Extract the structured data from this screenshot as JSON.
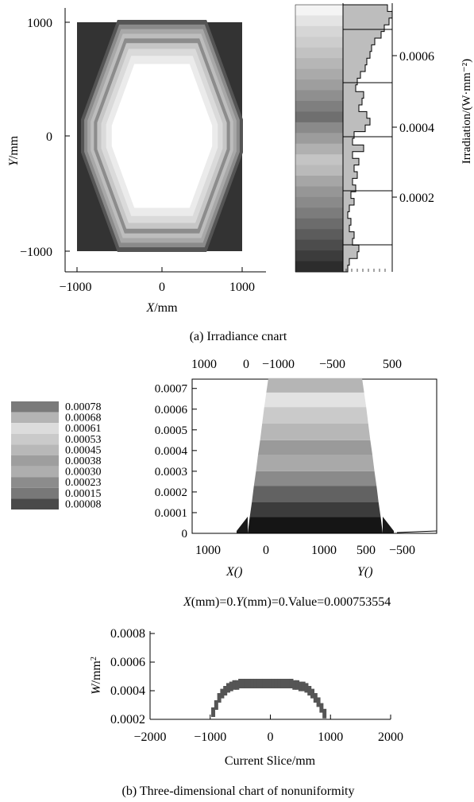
{
  "panel_a": {
    "caption": "(a) Irradiance cnart",
    "heatmap": {
      "ylabel_var": "Y",
      "ylabel_unit": "/mm",
      "xlabel_var": "X",
      "xlabel_unit": "/mm",
      "xticks": [
        "−1000",
        "0",
        "1000"
      ],
      "yticks": [
        "1000",
        "0",
        "−1000"
      ]
    },
    "colorbar": {
      "label": "Irradiation/(W·mm⁻²)",
      "ticks": [
        "0.0006",
        "0.0004",
        "0.0002"
      ]
    }
  },
  "panel_b": {
    "caption": "(b) Three-dimensional chart of nonuniformity",
    "legend": [
      "0.00078",
      "0.00068",
      "0.00061",
      "0.00053",
      "0.00045",
      "0.00038",
      "0.00030",
      "0.00023",
      "0.00015",
      "0.00008"
    ],
    "legend_colors": [
      "#7a7a7a",
      "#b4b4b4",
      "#dcdcdc",
      "#cacaca",
      "#b8b8b8",
      "#9e9e9e",
      "#aeaeae",
      "#8c8c8c",
      "#787878",
      "#4a4a4a"
    ],
    "view3d": {
      "top_ticks": [
        "1000",
        "0",
        "−1000",
        "−500",
        "500"
      ],
      "bottom_ticks": [
        "1000",
        "0",
        "1000",
        "500",
        "−500"
      ],
      "zticks": [
        "0.0007",
        "0.0006",
        "0.0005",
        "0.0004",
        "0.0003",
        "0.0002",
        "0.0001",
        "0"
      ],
      "xaxis": "X()",
      "yaxis": "Y()"
    },
    "readout": {
      "x_var": "X",
      "x_text": "(mm)=0.",
      "y_var": "Y",
      "y_text": "(mm)=0.Value=0.000753554"
    }
  },
  "chart_data": [
    {
      "type": "heatmap",
      "xlabel": "X/mm",
      "ylabel": "Y/mm",
      "xlim": [
        -1000,
        1000
      ],
      "ylim": [
        -1000,
        1000
      ],
      "colorbar_label": "Irradiation/(W·mm⁻²)",
      "colorbar_range": [
        0,
        0.00075
      ]
    },
    {
      "type": "area",
      "zlim": [
        0,
        0.0007
      ],
      "peak_value": 0.000753554,
      "legend_levels": [
        0.00078,
        0.00068,
        0.00061,
        0.00053,
        0.00045,
        0.00038,
        0.0003,
        0.00023,
        0.00015,
        8e-05
      ]
    },
    {
      "type": "scatter",
      "xlabel": "Current Slice/mm",
      "ylabel": "W/mm²",
      "xlim": [
        -2000,
        2000
      ],
      "ylim": [
        0.0002,
        0.0008
      ],
      "xticks": [
        "−2000",
        "−1000",
        "0",
        "1000",
        "2000"
      ],
      "yticks": [
        "0.0008",
        "0.0006",
        "0.0004",
        "0.0002"
      ],
      "x": [
        -950,
        -900,
        -850,
        -800,
        -750,
        -700,
        -650,
        -600,
        -550,
        -500,
        -450,
        -400,
        -350,
        -300,
        -250,
        -200,
        -150,
        -100,
        -50,
        0,
        50,
        100,
        150,
        200,
        250,
        300,
        350,
        400,
        450,
        500,
        550,
        600,
        650,
        700,
        750,
        800,
        850,
        900
      ],
      "y": [
        0.00025,
        0.0003,
        0.00035,
        0.00038,
        0.0004,
        0.00042,
        0.00043,
        0.00044,
        0.00044,
        0.00045,
        0.00045,
        0.00045,
        0.00045,
        0.00045,
        0.00045,
        0.00045,
        0.00045,
        0.00045,
        0.00045,
        0.00045,
        0.00045,
        0.00045,
        0.00045,
        0.00045,
        0.00045,
        0.00045,
        0.00045,
        0.00044,
        0.00044,
        0.00043,
        0.00043,
        0.00042,
        0.0004,
        0.00038,
        0.00035,
        0.00032,
        0.00028,
        0.00024
      ]
    }
  ]
}
